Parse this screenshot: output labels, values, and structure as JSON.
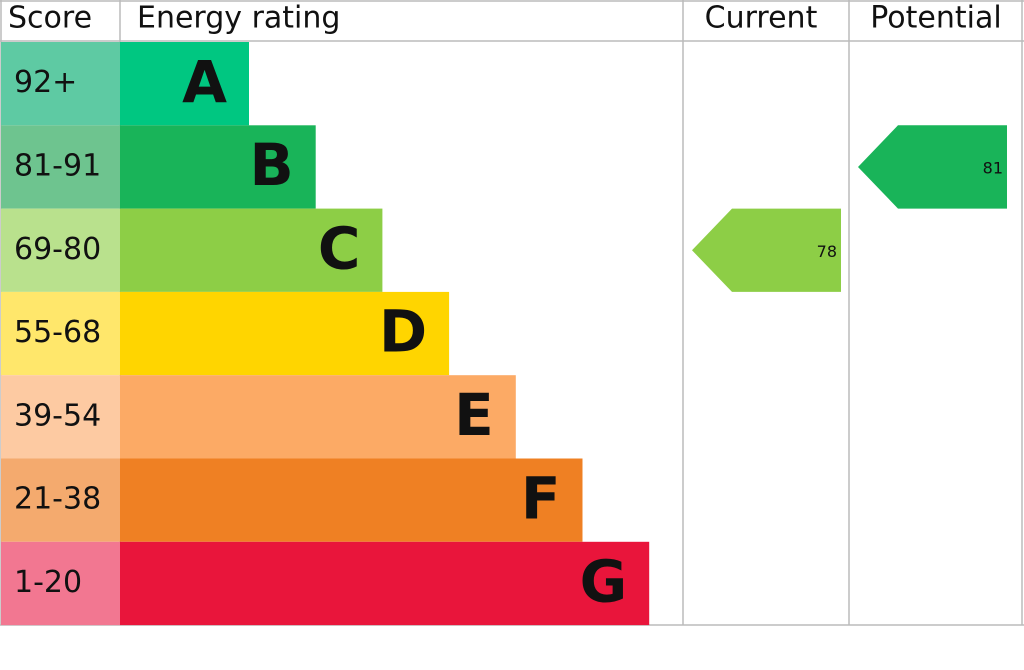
{
  "chart_data": {
    "type": "epc",
    "headers": [
      "Score",
      "Energy rating",
      "Current",
      "Potential"
    ],
    "bands": [
      {
        "score": "92+",
        "rating": "A",
        "color": "#00c781",
        "score_color": "#5ecaa3"
      },
      {
        "score": "81-91",
        "rating": "B",
        "color": "#19b459",
        "score_color": "#6ec48f"
      },
      {
        "score": "69-80",
        "rating": "C",
        "color": "#8dce46",
        "score_color": "#b9e18d"
      },
      {
        "score": "55-68",
        "rating": "D",
        "color": "#ffd500",
        "score_color": "#ffe76b"
      },
      {
        "score": "39-54",
        "rating": "E",
        "color": "#fcaa65",
        "score_color": "#fdcaa2"
      },
      {
        "score": "21-38",
        "rating": "F",
        "color": "#ef8023",
        "score_color": "#f4aa6e"
      },
      {
        "score": "1-20",
        "rating": "G",
        "color": "#e9153b",
        "score_color": "#f27791"
      }
    ],
    "current": 78,
    "potential": 81
  }
}
